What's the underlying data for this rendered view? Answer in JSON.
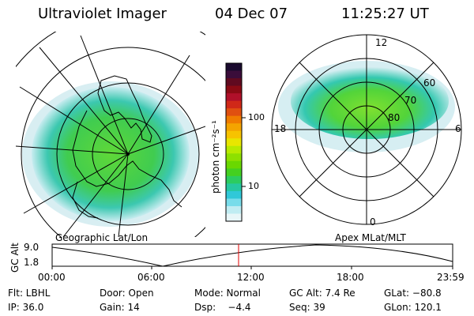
{
  "header": {
    "instrument": "Ultraviolet Imager",
    "date": "04 Dec 07",
    "time": "11:25:27 UT"
  },
  "colorbar": {
    "unit_label": "photon cm⁻²s⁻¹",
    "ticks": [
      "100",
      "10"
    ],
    "colors": [
      "#1a0a2e",
      "#3a0d3a",
      "#600a20",
      "#8a0a14",
      "#b0102a",
      "#d02818",
      "#e05010",
      "#f07c00",
      "#f4a400",
      "#f7c300",
      "#e8e600",
      "#b8ea00",
      "#8ee000",
      "#6ad800",
      "#44d020",
      "#2ccc60",
      "#26c8a0",
      "#30c8d8",
      "#78dcea",
      "#c0ecf2",
      "#e8f6f8"
    ]
  },
  "left_map": {
    "label": "Geographic Lat/Lon"
  },
  "right_map": {
    "label": "Apex MLat/MLT",
    "mlt_labels": {
      "top": "12",
      "left": "18",
      "right": "6",
      "bottom": "0"
    },
    "lat_labels": [
      "60",
      "70",
      "80"
    ]
  },
  "altitude_plot": {
    "ylabel": "GC Alt",
    "yticks": [
      "9.0",
      "1.8"
    ],
    "xticks": [
      "00:00",
      "06:00",
      "12:00",
      "18:00",
      "23:59"
    ],
    "marker_time": "11:25",
    "marker_color": "#e00000"
  },
  "info": {
    "row1": {
      "filter": "Flt: LBHL",
      "door": "Door: Open",
      "mode": "Mode: Normal",
      "gc_alt": "GC Alt: 7.4 Re",
      "glat": "GLat: −80.8"
    },
    "row2": {
      "ip": "IP: 36.0",
      "gain": "Gain: 14",
      "dsp": "Dsp:    −4.4",
      "seq": "Seq: 39",
      "glon": "GLon: 120.1"
    }
  }
}
